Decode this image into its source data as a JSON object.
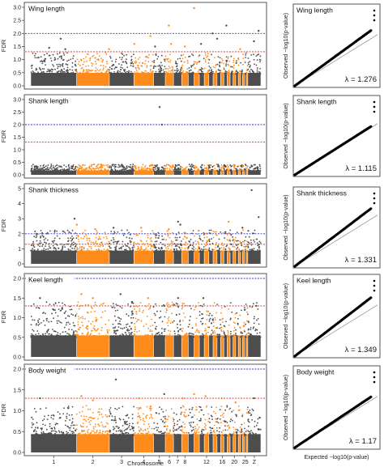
{
  "figure": {
    "x_axis_label": "Chromosome",
    "chromosome_ticks": [
      "1",
      "2",
      "3",
      "4",
      "5",
      "6",
      "7",
      "8",
      "12",
      "16",
      "20",
      "25",
      "Z"
    ],
    "y_label_manhattan": "FDR",
    "y_label_qq": "Observed −log10(p-value)",
    "x_label_qq": "Expected −log10(p-value)"
  },
  "chart_data": [
    {
      "type": "scatter",
      "subtype": "manhattan",
      "title": "Wing length",
      "ylabel": "FDR",
      "xlabel": "",
      "ylim": [
        0,
        3.0
      ],
      "yticks": [
        "0.0",
        "0.5",
        "1.0",
        "1.5",
        "2.0",
        "2.5",
        "3.0"
      ],
      "thresholds": [
        {
          "value": 2.0,
          "color": "#3333cc"
        },
        {
          "value": 1.3,
          "color": "#dd2222"
        }
      ],
      "baseline": 0.9,
      "outliers": [
        [
          0.08,
          1.45
        ],
        [
          0.13,
          1.8
        ],
        [
          0.15,
          1.4
        ],
        [
          0.34,
          1.4
        ],
        [
          0.45,
          1.6
        ],
        [
          0.52,
          1.9
        ],
        [
          0.54,
          1.5
        ],
        [
          0.6,
          2.3
        ],
        [
          0.61,
          1.6
        ],
        [
          0.67,
          1.5
        ],
        [
          0.71,
          3.0
        ],
        [
          0.74,
          1.6
        ],
        [
          0.79,
          2.0
        ],
        [
          0.81,
          1.8
        ],
        [
          0.85,
          2.3
        ],
        [
          0.91,
          1.4
        ],
        [
          0.97,
          1.7
        ],
        [
          0.99,
          2.1
        ]
      ]
    },
    {
      "type": "scatter",
      "subtype": "qq",
      "lambda": "λ = 1.276",
      "title": "Wing length"
    },
    {
      "type": "scatter",
      "subtype": "manhattan",
      "title": "Shank length",
      "ylabel": "FDR",
      "xlabel": "",
      "ylim": [
        0,
        3.0
      ],
      "yticks": [
        "0.0",
        "0.5",
        "1.0",
        "1.5",
        "2.0",
        "2.5",
        "3.0"
      ],
      "thresholds": [
        {
          "value": 2.0,
          "color": "#3333cc"
        },
        {
          "value": 1.3,
          "color": "#dd2222"
        }
      ],
      "baseline": 0.3,
      "outliers": [
        [
          0.56,
          2.7
        ],
        [
          0.57,
          2.0
        ]
      ]
    },
    {
      "type": "scatter",
      "subtype": "qq",
      "lambda": "λ = 1.115",
      "title": "Shank length"
    },
    {
      "type": "scatter",
      "subtype": "manhattan",
      "title": "Shank thickness",
      "ylabel": "FDR",
      "xlabel": "",
      "ylim": [
        0,
        5
      ],
      "yticks": [
        "0",
        "1",
        "2",
        "3",
        "4",
        "5"
      ],
      "thresholds": [
        {
          "value": 2.0,
          "color": "#3333cc"
        },
        {
          "value": 1.3,
          "color": "#dd2222"
        }
      ],
      "baseline": 1.6,
      "outliers": [
        [
          0.19,
          3.0
        ],
        [
          0.2,
          2.6
        ],
        [
          0.28,
          2.3
        ],
        [
          0.36,
          2.4
        ],
        [
          0.48,
          2.4
        ],
        [
          0.6,
          2.3
        ],
        [
          0.64,
          2.8
        ],
        [
          0.65,
          2.6
        ],
        [
          0.73,
          2.2
        ],
        [
          0.86,
          2.8
        ],
        [
          0.92,
          2.4
        ],
        [
          0.96,
          4.9
        ],
        [
          0.99,
          3.1
        ]
      ]
    },
    {
      "type": "scatter",
      "subtype": "qq",
      "lambda": "λ = 1.331",
      "title": "Shank thickness"
    },
    {
      "type": "scatter",
      "subtype": "manhattan",
      "title": "Keel length",
      "ylabel": "FDR",
      "xlabel": "",
      "ylim": [
        0,
        2.0
      ],
      "yticks": [
        "0.0",
        "0.5",
        "1.0",
        "1.5",
        "2.0"
      ],
      "thresholds": [
        {
          "value": 2.0,
          "color": "#3333cc"
        },
        {
          "value": 1.3,
          "color": "#dd2222"
        }
      ],
      "baseline": 1.0,
      "outliers": [
        [
          0.04,
          1.5
        ],
        [
          0.1,
          1.2
        ],
        [
          0.22,
          1.6
        ],
        [
          0.27,
          1.5
        ],
        [
          0.39,
          1.6
        ],
        [
          0.44,
          1.4
        ],
        [
          0.51,
          1.5
        ],
        [
          0.58,
          1.3
        ],
        [
          0.64,
          1.5
        ],
        [
          0.75,
          1.5
        ],
        [
          0.93,
          1.2
        ],
        [
          0.98,
          1.3
        ]
      ]
    },
    {
      "type": "scatter",
      "subtype": "qq",
      "lambda": "λ = 1.349",
      "title": "Keel length"
    },
    {
      "type": "scatter",
      "subtype": "manhattan",
      "title": "Body weight",
      "ylabel": "FDR",
      "xlabel": "Chromosome",
      "ylim": [
        0,
        2.0
      ],
      "yticks": [
        "0.0",
        "0.5",
        "1.0",
        "1.5",
        "2.0"
      ],
      "thresholds": [
        {
          "value": 2.0,
          "color": "#3333cc"
        },
        {
          "value": 1.3,
          "color": "#dd2222"
        }
      ],
      "baseline": 0.8,
      "outliers": [
        [
          0.04,
          1.3
        ],
        [
          0.22,
          1.35
        ],
        [
          0.27,
          1.25
        ],
        [
          0.37,
          1.75
        ],
        [
          0.47,
          1.3
        ],
        [
          0.58,
          1.4
        ],
        [
          0.66,
          1.3
        ],
        [
          0.71,
          1.4
        ],
        [
          0.76,
          1.35
        ],
        [
          0.83,
          1.3
        ],
        [
          0.89,
          1.2
        ],
        [
          0.97,
          1.3
        ]
      ]
    },
    {
      "type": "scatter",
      "subtype": "qq",
      "lambda": "λ = 1.17",
      "title": "Body weight"
    }
  ],
  "colors": {
    "chrom_dark": "#4d4d4d",
    "chrom_orange": "#ff8c1a",
    "qq_points": "#000000",
    "qq_line": "#999999",
    "frame": "#555555"
  }
}
